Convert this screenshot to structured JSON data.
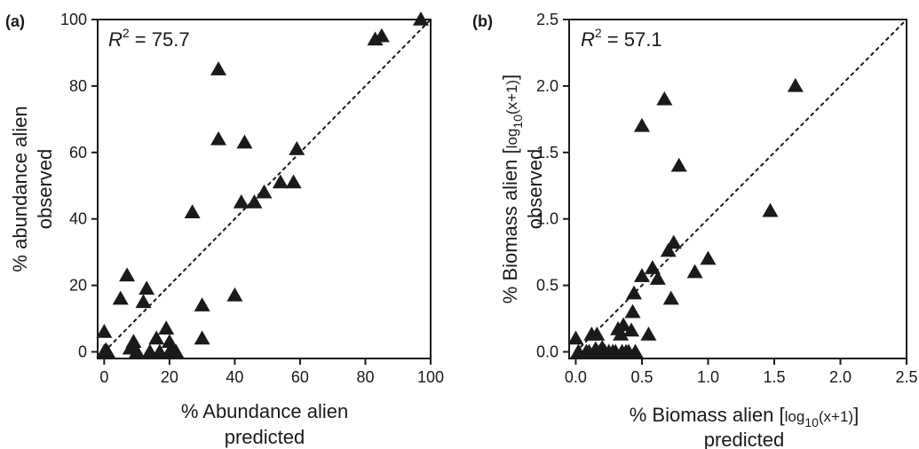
{
  "chart_data": [
    {
      "type": "scatter",
      "panel_label": "(a)",
      "annotation": {
        "prefix": "R",
        "sup": "2",
        "value": " = 75.7"
      },
      "xlabel": {
        "line1": "% Abundance alien",
        "line2": "predicted"
      },
      "ylabel": {
        "line1": "% abundance alien",
        "line2": "observed"
      },
      "xlim": [
        -2,
        100
      ],
      "ylim": [
        -2,
        100
      ],
      "xticks": [
        0,
        20,
        40,
        60,
        80,
        100
      ],
      "yticks": [
        0,
        20,
        40,
        60,
        80,
        100
      ],
      "xtick_labels": [
        "0",
        "20",
        "40",
        "60",
        "80",
        "100"
      ],
      "ytick_labels": [
        "0",
        "20",
        "40",
        "60",
        "80",
        "100"
      ],
      "reference_line": {
        "style": "dotted",
        "from": [
          0,
          0
        ],
        "to": [
          100,
          100
        ]
      },
      "marker": "triangle",
      "points": [
        [
          0,
          6
        ],
        [
          0,
          0
        ],
        [
          0.5,
          0.5
        ],
        [
          1,
          0
        ],
        [
          5,
          16
        ],
        [
          7,
          23
        ],
        [
          8,
          1
        ],
        [
          9,
          3
        ],
        [
          10,
          0
        ],
        [
          12,
          15
        ],
        [
          13,
          19
        ],
        [
          14,
          0
        ],
        [
          16,
          4
        ],
        [
          17,
          0
        ],
        [
          19,
          7
        ],
        [
          20,
          3
        ],
        [
          20,
          0
        ],
        [
          21,
          1
        ],
        [
          22,
          0
        ],
        [
          27,
          42
        ],
        [
          30,
          4
        ],
        [
          30,
          14
        ],
        [
          35,
          85
        ],
        [
          35,
          64
        ],
        [
          40,
          17
        ],
        [
          42,
          45
        ],
        [
          43,
          63
        ],
        [
          46,
          45
        ],
        [
          49,
          48
        ],
        [
          54,
          51
        ],
        [
          58,
          51
        ],
        [
          59,
          61
        ],
        [
          83,
          94
        ],
        [
          85,
          95
        ],
        [
          97,
          100
        ]
      ]
    },
    {
      "type": "scatter",
      "panel_label": "(b)",
      "annotation": {
        "prefix": "R",
        "sup": "2",
        "value": " = 57.1"
      },
      "xlabel": {
        "line1": "% Biomass alien ",
        "bracket_open": "[",
        "log": "log",
        "log_sub": "10",
        "arg": "(x+1)",
        "bracket_close": "]",
        "line2": "predicted"
      },
      "ylabel": {
        "line1": "% Biomass alien ",
        "bracket_open": "[",
        "log": "log",
        "log_sub": "10",
        "arg": "(x+1)",
        "bracket_close": "]",
        "line2": "observed"
      },
      "xlim": [
        -0.05,
        2.5
      ],
      "ylim": [
        -0.05,
        2.5
      ],
      "xticks": [
        0,
        0.5,
        1.0,
        1.5,
        2.0,
        2.5
      ],
      "yticks": [
        0,
        0.5,
        1.0,
        1.5,
        2.0,
        2.5
      ],
      "xtick_labels": [
        "0.0",
        "0.5",
        "1.0",
        "1.5",
        "2.0",
        "2.5"
      ],
      "ytick_labels": [
        "0.0",
        "0.5",
        "1.0",
        "1.5",
        "2.0",
        "2.5"
      ],
      "reference_line": {
        "style": "dotted",
        "from": [
          0,
          0
        ],
        "to": [
          2.5,
          2.5
        ]
      },
      "marker": "triangle",
      "points": [
        [
          0.0,
          0.1
        ],
        [
          0.02,
          0.0
        ],
        [
          0.08,
          0.0
        ],
        [
          0.1,
          0.0
        ],
        [
          0.12,
          0.13
        ],
        [
          0.14,
          0.0
        ],
        [
          0.15,
          0.02
        ],
        [
          0.16,
          0.13
        ],
        [
          0.18,
          0.0
        ],
        [
          0.2,
          0.03
        ],
        [
          0.22,
          0.0
        ],
        [
          0.25,
          0.0
        ],
        [
          0.28,
          0.0
        ],
        [
          0.3,
          0.0
        ],
        [
          0.32,
          0.17
        ],
        [
          0.34,
          0.13
        ],
        [
          0.35,
          0.0
        ],
        [
          0.36,
          0.2
        ],
        [
          0.38,
          0.0
        ],
        [
          0.4,
          0.0
        ],
        [
          0.42,
          0.16
        ],
        [
          0.43,
          0.3
        ],
        [
          0.44,
          0.44
        ],
        [
          0.45,
          0.0
        ],
        [
          0.5,
          1.7
        ],
        [
          0.5,
          0.57
        ],
        [
          0.55,
          0.13
        ],
        [
          0.58,
          0.63
        ],
        [
          0.62,
          0.55
        ],
        [
          0.67,
          1.9
        ],
        [
          0.7,
          0.76
        ],
        [
          0.72,
          0.4
        ],
        [
          0.74,
          0.82
        ],
        [
          0.78,
          1.4
        ],
        [
          0.9,
          0.6
        ],
        [
          1.0,
          0.7
        ],
        [
          1.47,
          1.06
        ],
        [
          1.66,
          2.0
        ]
      ]
    }
  ]
}
